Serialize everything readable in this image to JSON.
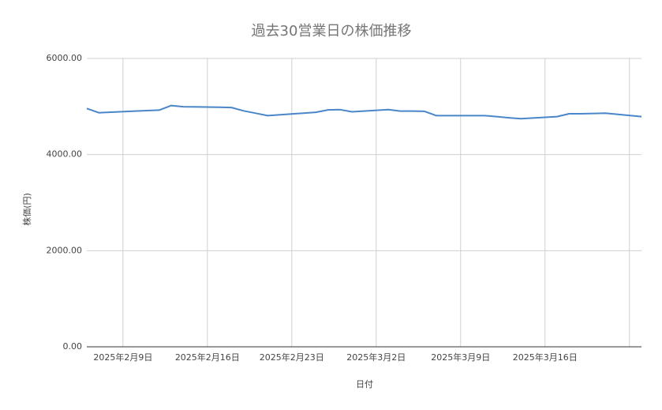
{
  "chart_data": {
    "type": "line",
    "title": "過去30営業日の株価推移",
    "x_label": "日付",
    "y_label": "株価(円)",
    "x": [
      "2025-02-06",
      "2025-02-07",
      "2025-02-10",
      "2025-02-12",
      "2025-02-13",
      "2025-02-14",
      "2025-02-17",
      "2025-02-18",
      "2025-02-19",
      "2025-02-20",
      "2025-02-21",
      "2025-02-25",
      "2025-02-26",
      "2025-02-27",
      "2025-02-28",
      "2025-03-03",
      "2025-03-04",
      "2025-03-05",
      "2025-03-06",
      "2025-03-07",
      "2025-03-10",
      "2025-03-11",
      "2025-03-12",
      "2025-03-13",
      "2025-03-14",
      "2025-03-17",
      "2025-03-18",
      "2025-03-19",
      "2025-03-21",
      "2025-03-24"
    ],
    "series": [
      {
        "name": "株価",
        "color": "#4a86c8",
        "values": [
          4960,
          4870,
          4905,
          4925,
          5020,
          4995,
          4985,
          4980,
          4910,
          4860,
          4810,
          4880,
          4930,
          4935,
          4890,
          4935,
          4905,
          4905,
          4900,
          4810,
          4810,
          4810,
          4790,
          4765,
          4745,
          4790,
          4850,
          4850,
          4860,
          4790
        ]
      }
    ],
    "xlim": [
      "2025-02-06",
      "2025-03-24"
    ],
    "xticks": [
      {
        "value": "2025-02-09",
        "label": "2025年2月9日"
      },
      {
        "value": "2025-02-16",
        "label": "2025年2月16日"
      },
      {
        "value": "2025-02-23",
        "label": "2025年2月23日"
      },
      {
        "value": "2025-03-02",
        "label": "2025年3月2日"
      },
      {
        "value": "2025-03-09",
        "label": "2025年3月9日"
      },
      {
        "value": "2025-03-16",
        "label": "2025年3月16日"
      },
      {
        "value": "2025-03-23",
        "label": null
      }
    ],
    "ylim": [
      0,
      6000
    ],
    "yticks": [
      {
        "value": 0,
        "label": "0.00"
      },
      {
        "value": 2000,
        "label": "2000.00"
      },
      {
        "value": 4000,
        "label": "4000.00"
      },
      {
        "value": 6000,
        "label": "6000.00"
      }
    ],
    "grid": true
  }
}
